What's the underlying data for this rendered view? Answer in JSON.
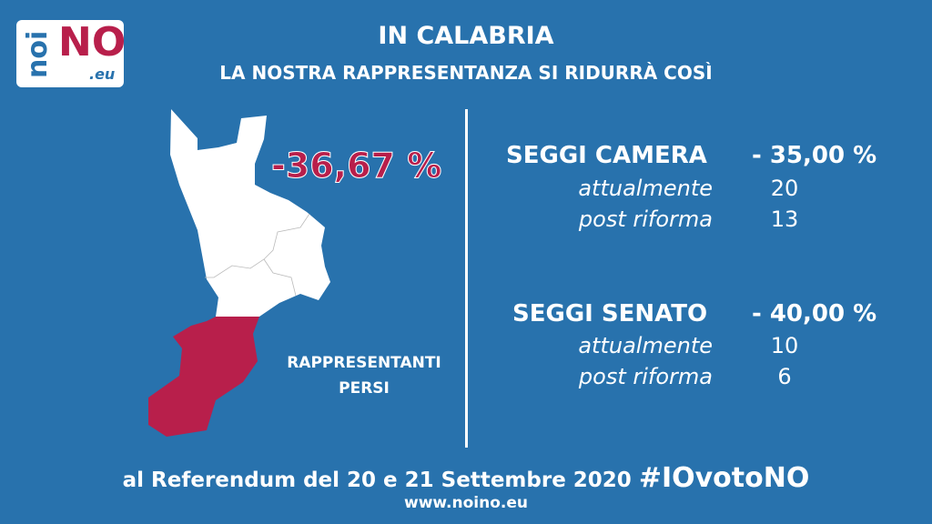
{
  "logo": {
    "noi": "noi",
    "no": "NO",
    "eu": ".eu"
  },
  "header": {
    "title": "IN CALABRIA",
    "subtitle": "LA NOSTRA RAPPRESENTANZA SI RIDURRÀ COSÌ"
  },
  "map": {
    "total_change": "-36,67 %",
    "caption_line1": "RAPPRESENTANTI",
    "caption_line2": "PERSI",
    "kept_color": "#ffffff",
    "lost_color": "#b81f4b"
  },
  "camera": {
    "label": "SEGGI CAMERA",
    "change": "- 35,00 %",
    "current_label": "attualmente",
    "current": "20",
    "post_label": "post riforma",
    "post": "13"
  },
  "senato": {
    "label": "SEGGI SENATO",
    "change": "- 40,00 %",
    "current_label": "attualmente",
    "current": "10",
    "post_label": "post riforma",
    "post": "6"
  },
  "footer": {
    "text": "al Referendum del 20 e 21 Settembre 2020",
    "hashtag": "#IOvotoNO",
    "url": "www.noino.eu"
  },
  "colors": {
    "background": "#2872ad",
    "accent": "#b81f4b"
  }
}
